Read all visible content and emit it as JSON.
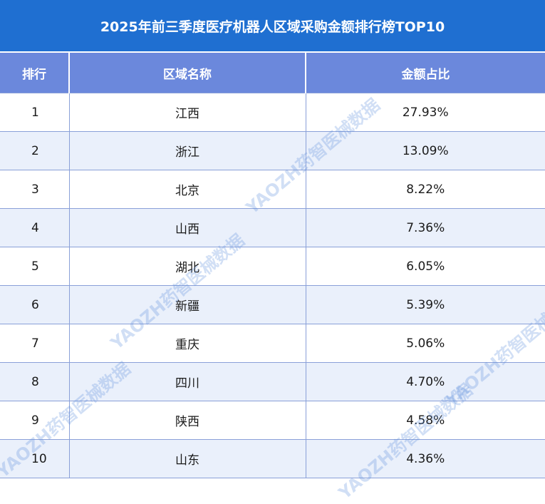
{
  "title": "2025年前三季度医疗机器人区域采购金额排行榜TOP10",
  "columns": [
    "排行",
    "区域名称",
    "金额占比"
  ],
  "rows": [
    {
      "rank": "1",
      "region": "江西",
      "share": "27.93%"
    },
    {
      "rank": "2",
      "region": "浙江",
      "share": "13.09%"
    },
    {
      "rank": "3",
      "region": "北京",
      "share": "8.22%"
    },
    {
      "rank": "4",
      "region": "山西",
      "share": "7.36%"
    },
    {
      "rank": "5",
      "region": "湖北",
      "share": "6.05%"
    },
    {
      "rank": "6",
      "region": "新疆",
      "share": "5.39%"
    },
    {
      "rank": "7",
      "region": "重庆",
      "share": "5.06%"
    },
    {
      "rank": "8",
      "region": "四川",
      "share": "4.70%"
    },
    {
      "rank": "9",
      "region": "陕西",
      "share": "4.58%"
    },
    {
      "rank": "10",
      "region": "山东",
      "share": "4.36%"
    }
  ],
  "watermark": "YAOZH药智医械数据",
  "colors": {
    "title_bg": "#1f6fd1",
    "header_bg": "#6b88dc",
    "stripe": "#eaf0fb"
  }
}
